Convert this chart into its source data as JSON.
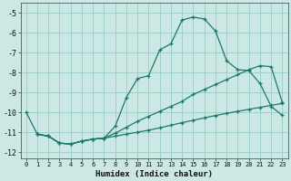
{
  "xlabel": "Humidex (Indice chaleur)",
  "ylabel": "",
  "bg_color": "#cce8e4",
  "grid_color": "#99ccc6",
  "line_color": "#1a7a6a",
  "xlim": [
    -0.5,
    23.5
  ],
  "ylim": [
    -12.3,
    -4.5
  ],
  "yticks": [
    -12,
    -11,
    -10,
    -9,
    -8,
    -7,
    -6,
    -5
  ],
  "xticks": [
    0,
    1,
    2,
    3,
    4,
    5,
    6,
    7,
    8,
    9,
    10,
    11,
    12,
    13,
    14,
    15,
    16,
    17,
    18,
    19,
    20,
    21,
    22,
    23
  ],
  "line1_x": [
    0,
    1,
    2,
    3,
    4,
    5,
    6,
    7,
    8,
    9,
    10,
    11,
    12,
    13,
    14,
    15,
    16,
    17,
    18,
    19,
    20,
    21,
    22,
    23
  ],
  "line1_y": [
    -10.0,
    -11.1,
    -11.2,
    -11.55,
    -11.6,
    -11.45,
    -11.35,
    -11.3,
    -10.7,
    -9.25,
    -8.3,
    -8.15,
    -6.85,
    -6.55,
    -5.35,
    -5.2,
    -5.3,
    -5.9,
    -7.4,
    -7.85,
    -7.9,
    -8.55,
    -9.7,
    -10.15
  ],
  "line2_x": [
    1,
    2,
    3,
    4,
    5,
    6,
    7,
    8,
    9,
    10,
    11,
    12,
    13,
    14,
    15,
    16,
    17,
    18,
    19,
    20,
    21,
    22,
    23
  ],
  "line2_y": [
    -11.1,
    -11.2,
    -11.55,
    -11.6,
    -11.45,
    -11.35,
    -11.3,
    -11.05,
    -10.75,
    -10.45,
    -10.2,
    -9.95,
    -9.7,
    -9.45,
    -9.1,
    -8.85,
    -8.6,
    -8.35,
    -8.1,
    -7.85,
    -7.65,
    -7.7,
    -9.5
  ],
  "line3_x": [
    1,
    2,
    3,
    4,
    5,
    6,
    7,
    8,
    9,
    10,
    11,
    12,
    13,
    14,
    15,
    16,
    17,
    18,
    19,
    20,
    21,
    22,
    23
  ],
  "line3_y": [
    -11.1,
    -11.2,
    -11.55,
    -11.6,
    -11.45,
    -11.35,
    -11.3,
    -11.2,
    -11.1,
    -11.0,
    -10.9,
    -10.78,
    -10.65,
    -10.52,
    -10.4,
    -10.28,
    -10.16,
    -10.05,
    -9.95,
    -9.85,
    -9.75,
    -9.65,
    -9.55
  ]
}
